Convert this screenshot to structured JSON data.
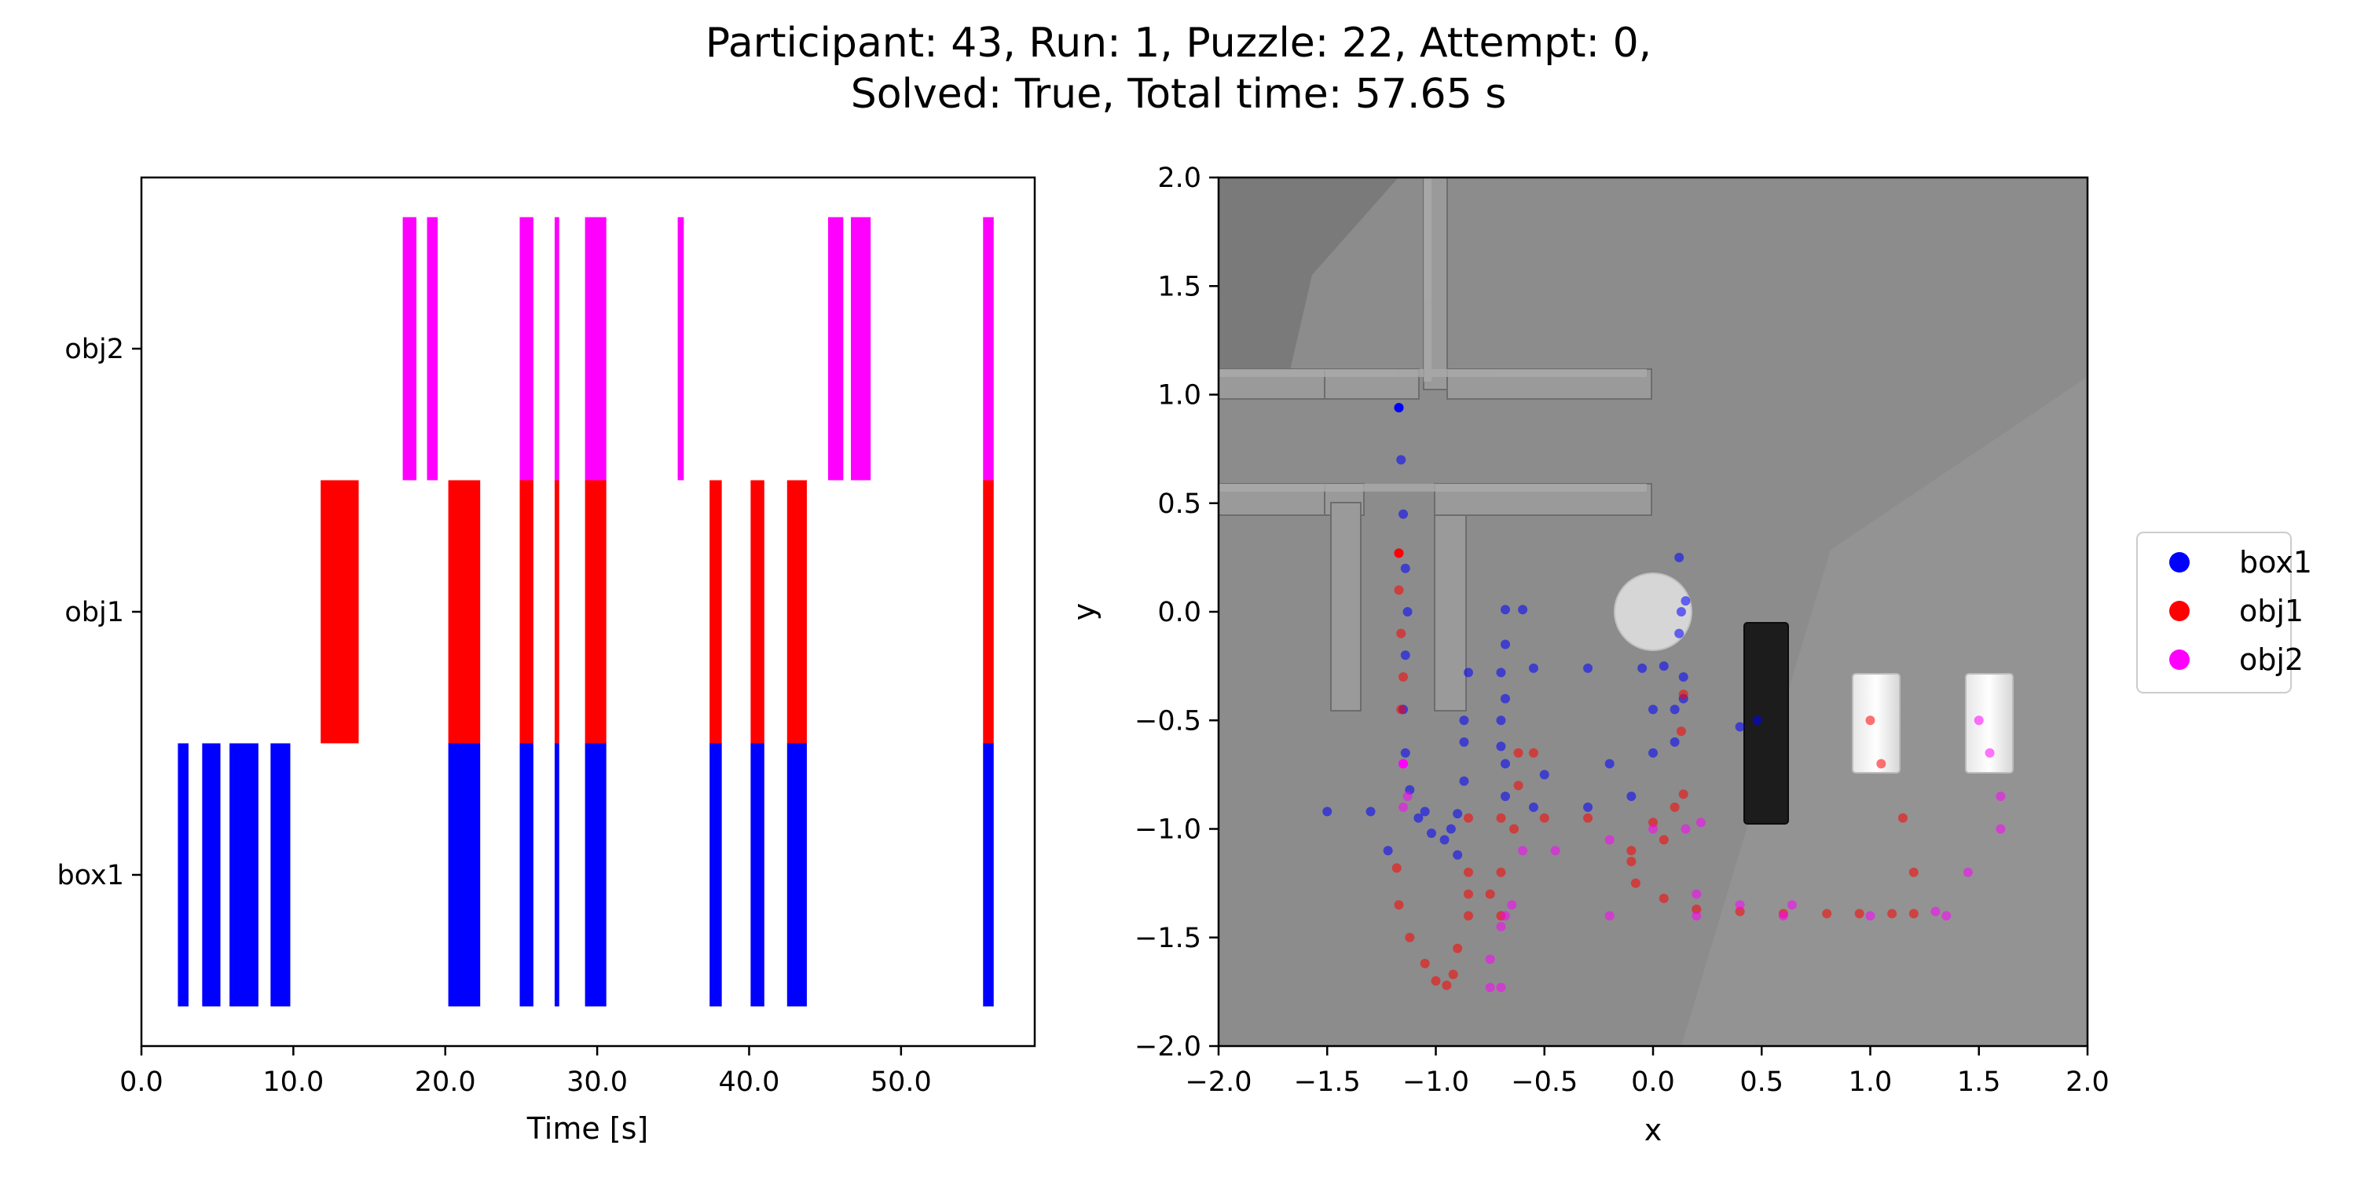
{
  "figure": {
    "title_line1": "Participant: 43, Run: 1, Puzzle: 22, Attempt: 0,",
    "title_line2": "Solved: True, Total time: 57.65 s"
  },
  "chart_data": [
    {
      "type": "timeline",
      "xlabel": "Time [s]",
      "xlim": [
        0,
        58.8
      ],
      "xticks": [
        0,
        10,
        20,
        30,
        40,
        50
      ],
      "xtick_labels": [
        "0.0",
        "10.0",
        "20.0",
        "30.0",
        "40.0",
        "50.0"
      ],
      "rows": [
        "box1",
        "obj1",
        "obj2"
      ],
      "colors": {
        "box1": "#0000ff",
        "obj1": "#ff0000",
        "obj2": "#ff00ff"
      },
      "segments": {
        "box1": [
          [
            2.4,
            3.1
          ],
          [
            4.0,
            5.2
          ],
          [
            5.8,
            7.7
          ],
          [
            8.5,
            9.8
          ],
          [
            20.2,
            22.3
          ],
          [
            24.9,
            25.8
          ],
          [
            27.2,
            27.5
          ],
          [
            29.2,
            30.6
          ],
          [
            37.4,
            38.2
          ],
          [
            40.1,
            41.0
          ],
          [
            42.5,
            43.8
          ],
          [
            55.4,
            56.1
          ]
        ],
        "obj1": [
          [
            11.8,
            14.3
          ],
          [
            20.2,
            22.3
          ],
          [
            24.9,
            25.8
          ],
          [
            27.2,
            27.5
          ],
          [
            29.2,
            30.6
          ],
          [
            37.4,
            38.2
          ],
          [
            40.1,
            41.0
          ],
          [
            42.5,
            43.8
          ],
          [
            55.4,
            56.1
          ]
        ],
        "obj2": [
          [
            17.2,
            18.1
          ],
          [
            18.8,
            19.5
          ],
          [
            24.9,
            25.8
          ],
          [
            27.2,
            27.5
          ],
          [
            29.2,
            30.6
          ],
          [
            35.3,
            35.7
          ],
          [
            45.2,
            46.2
          ],
          [
            46.7,
            48.0
          ],
          [
            55.4,
            56.1
          ]
        ]
      }
    },
    {
      "type": "scatter",
      "xlabel": "x",
      "ylabel": "y",
      "xlim": [
        -2.0,
        2.0
      ],
      "ylim": [
        -2.0,
        2.0
      ],
      "ticks": [
        -2.0,
        -1.5,
        -1.0,
        -0.5,
        0.0,
        0.5,
        1.0,
        1.5,
        2.0
      ],
      "tick_labels": [
        "−2.0",
        "−1.5",
        "−1.0",
        "−0.5",
        "0.0",
        "0.5",
        "1.0",
        "1.5",
        "2.0"
      ],
      "legend_position": "right",
      "series": [
        {
          "name": "box1",
          "color": "#0000ff",
          "points": [
            [
              -1.17,
              0.94
            ],
            [
              -1.16,
              0.7
            ],
            [
              -1.15,
              0.45
            ],
            [
              -1.14,
              0.2
            ],
            [
              -1.13,
              0.0
            ],
            [
              -1.14,
              -0.2
            ],
            [
              -1.15,
              -0.45
            ],
            [
              -1.14,
              -0.65
            ],
            [
              -1.12,
              -0.82
            ],
            [
              -1.08,
              -0.95
            ],
            [
              -1.02,
              -1.02
            ],
            [
              -0.96,
              -1.05
            ],
            [
              -0.93,
              -1.0
            ],
            [
              -0.9,
              -0.93
            ],
            [
              -1.05,
              -0.92
            ],
            [
              -1.3,
              -0.92
            ],
            [
              -1.5,
              -0.92
            ],
            [
              -1.22,
              -1.1
            ],
            [
              -0.9,
              -1.12
            ],
            [
              -0.85,
              -0.28
            ],
            [
              -0.7,
              -0.28
            ],
            [
              -0.55,
              -0.26
            ],
            [
              -0.3,
              -0.26
            ],
            [
              -0.05,
              -0.26
            ],
            [
              -0.68,
              0.01
            ],
            [
              -0.6,
              0.01
            ],
            [
              -0.68,
              -0.15
            ],
            [
              -0.68,
              -0.4
            ],
            [
              -0.68,
              -0.7
            ],
            [
              -0.68,
              -0.85
            ],
            [
              -0.55,
              -0.9
            ],
            [
              -0.3,
              -0.9
            ],
            [
              -0.1,
              -0.85
            ],
            [
              0.0,
              -0.65
            ],
            [
              0.0,
              -0.45
            ],
            [
              0.05,
              -0.25
            ],
            [
              0.12,
              -0.1
            ],
            [
              0.15,
              0.05
            ],
            [
              0.12,
              0.25
            ],
            [
              0.13,
              0.0
            ],
            [
              -0.87,
              -0.5
            ],
            [
              -0.7,
              -0.5
            ],
            [
              -0.87,
              -0.6
            ],
            [
              -0.7,
              -0.62
            ],
            [
              -0.87,
              -0.78
            ],
            [
              -0.5,
              -0.75
            ],
            [
              -0.2,
              -0.7
            ],
            [
              0.1,
              -0.6
            ],
            [
              0.4,
              -0.53
            ],
            [
              0.48,
              -0.5
            ],
            [
              0.14,
              -0.4
            ],
            [
              0.14,
              -0.3
            ],
            [
              0.1,
              -0.45
            ]
          ]
        },
        {
          "name": "obj1",
          "color": "#ff0000",
          "points": [
            [
              -1.17,
              0.27
            ],
            [
              -1.17,
              0.1
            ],
            [
              -1.16,
              -0.1
            ],
            [
              -1.15,
              -0.3
            ],
            [
              -1.16,
              -0.45
            ],
            [
              -1.18,
              -1.18
            ],
            [
              -1.17,
              -1.35
            ],
            [
              -1.12,
              -1.5
            ],
            [
              -1.05,
              -1.62
            ],
            [
              -1.0,
              -1.7
            ],
            [
              -0.95,
              -1.72
            ],
            [
              -0.92,
              -1.67
            ],
            [
              -0.9,
              -1.55
            ],
            [
              -0.85,
              -0.95
            ],
            [
              -0.7,
              -0.95
            ],
            [
              -0.5,
              -0.95
            ],
            [
              -0.3,
              -0.95
            ],
            [
              -0.62,
              -0.65
            ],
            [
              -0.55,
              -0.65
            ],
            [
              -0.62,
              -0.8
            ],
            [
              -0.64,
              -1.0
            ],
            [
              -0.7,
              -1.2
            ],
            [
              -0.75,
              -1.3
            ],
            [
              -0.85,
              -1.3
            ],
            [
              -0.85,
              -1.4
            ],
            [
              -0.7,
              -1.4
            ],
            [
              -0.85,
              -1.2
            ],
            [
              -0.1,
              -1.15
            ],
            [
              -0.08,
              -1.25
            ],
            [
              0.05,
              -1.32
            ],
            [
              0.2,
              -1.37
            ],
            [
              0.4,
              -1.38
            ],
            [
              0.6,
              -1.39
            ],
            [
              0.8,
              -1.39
            ],
            [
              0.95,
              -1.39
            ],
            [
              0.05,
              -1.05
            ],
            [
              0.1,
              -0.9
            ],
            [
              0.14,
              -0.84
            ],
            [
              0.0,
              -0.97
            ],
            [
              -0.1,
              -1.1
            ],
            [
              0.13,
              -0.55
            ],
            [
              0.14,
              -0.38
            ],
            [
              1.0,
              -0.5
            ],
            [
              1.05,
              -0.7
            ],
            [
              1.15,
              -0.95
            ],
            [
              1.2,
              -1.2
            ],
            [
              1.2,
              -1.39
            ],
            [
              1.1,
              -1.39
            ]
          ]
        },
        {
          "name": "obj2",
          "color": "#ff00ff",
          "points": [
            [
              -1.15,
              -0.7
            ],
            [
              -1.13,
              -0.85
            ],
            [
              -1.15,
              -0.9
            ],
            [
              -0.75,
              -1.73
            ],
            [
              -0.7,
              -1.73
            ],
            [
              -0.75,
              -1.6
            ],
            [
              -0.7,
              -1.45
            ],
            [
              -0.65,
              -1.35
            ],
            [
              -0.68,
              -1.4
            ],
            [
              -0.6,
              -1.1
            ],
            [
              -0.45,
              -1.1
            ],
            [
              -0.2,
              -1.05
            ],
            [
              0.0,
              -1.0
            ],
            [
              0.15,
              -1.0
            ],
            [
              0.22,
              -0.97
            ],
            [
              0.2,
              -1.3
            ],
            [
              0.4,
              -1.35
            ],
            [
              0.64,
              -1.35
            ],
            [
              -0.2,
              -1.4
            ],
            [
              0.2,
              -1.4
            ],
            [
              0.6,
              -1.4
            ],
            [
              1.0,
              -1.4
            ],
            [
              1.35,
              -1.4
            ],
            [
              1.5,
              -0.5
            ],
            [
              1.55,
              -0.65
            ],
            [
              1.6,
              -0.85
            ],
            [
              1.6,
              -1.0
            ],
            [
              1.45,
              -1.2
            ],
            [
              1.3,
              -1.38
            ]
          ]
        }
      ],
      "scene_objects": {
        "black_box_center": [
          0.48,
          -0.5
        ],
        "box_tall_1_center": [
          1.0,
          -0.52
        ],
        "box_tall_2_center": [
          1.5,
          -0.52
        ],
        "disc_center": [
          0.0,
          0.0
        ]
      }
    }
  ]
}
